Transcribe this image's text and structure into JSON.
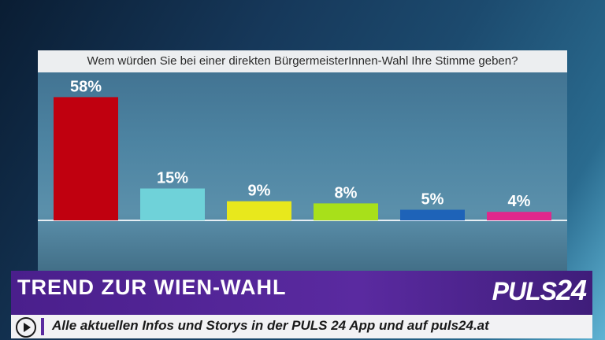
{
  "question": "Wem würden Sie bei einer direkten BürgermeisterInnen-Wahl Ihre Stimme geben?",
  "chart_data": {
    "type": "bar",
    "title": "Wem würden Sie bei einer direkten BürgermeisterInnen-Wahl Ihre Stimme geben?",
    "categories": [
      "",
      "",
      "",
      "",
      "",
      ""
    ],
    "values": [
      58,
      15,
      9,
      8,
      5,
      4
    ],
    "value_labels": [
      "58%",
      "15%",
      "9%",
      "8%",
      "5%",
      "4%"
    ],
    "colors": [
      "#c0000f",
      "#6fd2d9",
      "#e8e81c",
      "#a8e01a",
      "#1e63b8",
      "#e0288c"
    ],
    "ylim": [
      0,
      60
    ],
    "grid": false,
    "legend": "none"
  },
  "banner": {
    "title": "TREND ZUR WIEN-WAHL",
    "logo_text": "PULS",
    "logo_num": "24",
    "ticker": "Alle aktuellen Infos und Storys in der PULS 24 App und auf puls24.at",
    "accent": "#5a2aa0"
  }
}
